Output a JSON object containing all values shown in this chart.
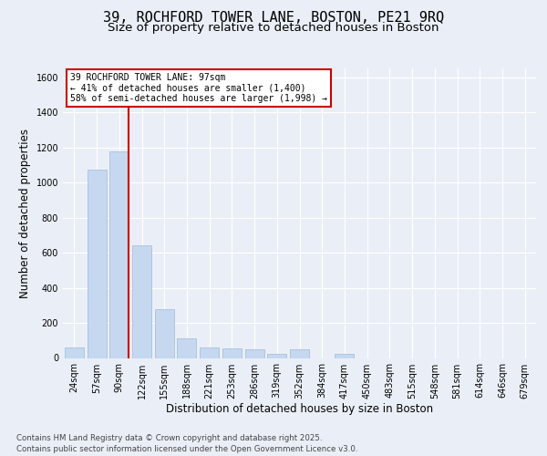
{
  "title_line1": "39, ROCHFORD TOWER LANE, BOSTON, PE21 9RQ",
  "title_line2": "Size of property relative to detached houses in Boston",
  "xlabel": "Distribution of detached houses by size in Boston",
  "ylabel": "Number of detached properties",
  "categories": [
    "24sqm",
    "57sqm",
    "90sqm",
    "122sqm",
    "155sqm",
    "188sqm",
    "221sqm",
    "253sqm",
    "286sqm",
    "319sqm",
    "352sqm",
    "384sqm",
    "417sqm",
    "450sqm",
    "483sqm",
    "515sqm",
    "548sqm",
    "581sqm",
    "614sqm",
    "646sqm",
    "679sqm"
  ],
  "values": [
    60,
    1075,
    1175,
    640,
    280,
    110,
    60,
    55,
    50,
    25,
    50,
    0,
    25,
    0,
    0,
    0,
    0,
    0,
    0,
    0,
    0
  ],
  "bar_color": "#c5d8f0",
  "bar_edge_color": "#a0b8d8",
  "vline_x": 2.43,
  "vline_color": "#cc0000",
  "annotation_title": "39 ROCHFORD TOWER LANE: 97sqm",
  "annotation_line1": "← 41% of detached houses are smaller (1,400)",
  "annotation_line2": "58% of semi-detached houses are larger (1,998) →",
  "annotation_box_color": "#cc0000",
  "ylim": [
    0,
    1650
  ],
  "yticks": [
    0,
    200,
    400,
    600,
    800,
    1000,
    1200,
    1400,
    1600
  ],
  "bg_color": "#eaeff7",
  "plot_bg_color": "#eaeff7",
  "footer_line1": "Contains HM Land Registry data © Crown copyright and database right 2025.",
  "footer_line2": "Contains public sector information licensed under the Open Government Licence v3.0.",
  "title_fontsize": 11,
  "subtitle_fontsize": 9.5,
  "tick_fontsize": 7,
  "label_fontsize": 8.5
}
